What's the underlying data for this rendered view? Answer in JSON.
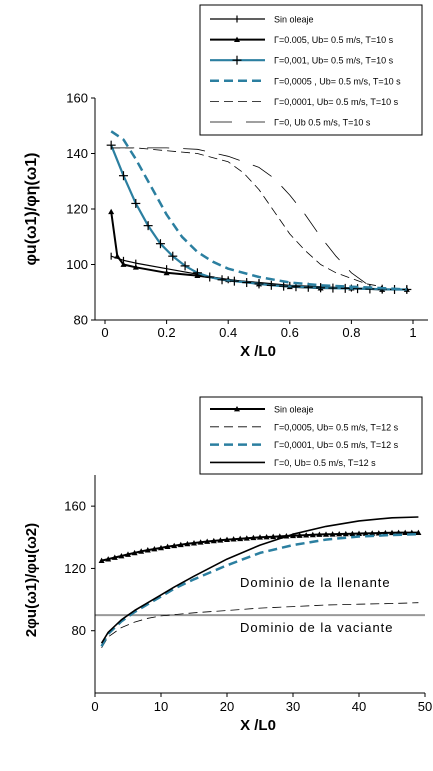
{
  "chart_data": [
    {
      "type": "line",
      "xlabel": "X /L0",
      "ylabel": "φu(ω1)/φη(ω1)",
      "xlim": [
        0,
        1
      ],
      "ylim": [
        80,
        160
      ],
      "x_ticks": [
        "0",
        "0.2",
        "0.4",
        "0.6",
        "0.8",
        "1"
      ],
      "y_ticks": [
        "80",
        "100",
        "120",
        "140",
        "160"
      ],
      "legend_position": "top-right",
      "series": [
        {
          "name": "Sin oleaje",
          "color": "#000000",
          "style": "solid",
          "width": 1.2,
          "marker": "tick",
          "x": [
            0.02,
            0.06,
            0.1,
            0.2,
            0.3,
            0.4,
            0.5,
            0.6,
            0.7,
            0.8,
            0.9,
            0.98
          ],
          "y": [
            103,
            101.5,
            100.5,
            98.5,
            96.5,
            94.5,
            93.5,
            92.5,
            92,
            91.5,
            91,
            91
          ]
        },
        {
          "name": "Γ=0.005, Ub= 0.5 m/s, T=10 s",
          "color": "#000000",
          "style": "solid",
          "width": 2,
          "marker": "triangle",
          "x": [
            0.02,
            0.04,
            0.06,
            0.1,
            0.2,
            0.3,
            0.4,
            0.5,
            0.6,
            0.7,
            0.8,
            0.9,
            0.98
          ],
          "y": [
            119,
            103,
            100,
            99,
            97,
            96,
            94.5,
            93,
            92,
            91.5,
            91.5,
            91,
            91
          ]
        },
        {
          "name": "Γ=0,001, Ub= 0.5 m/s, T=10 s",
          "color": "#2b7fa0",
          "style": "solid",
          "width": 2.2,
          "marker": "plus",
          "x": [
            0.02,
            0.06,
            0.1,
            0.14,
            0.18,
            0.22,
            0.26,
            0.3,
            0.34,
            0.38,
            0.42,
            0.46,
            0.5,
            0.54,
            0.58,
            0.62,
            0.66,
            0.7,
            0.74,
            0.78,
            0.82,
            0.86,
            0.9,
            0.94,
            0.98
          ],
          "y": [
            143,
            132,
            122,
            114,
            107.5,
            103,
            99.5,
            97,
            95.5,
            94.5,
            94,
            93.5,
            93,
            92.5,
            92.2,
            92,
            91.8,
            91.6,
            91.5,
            91.4,
            91.3,
            91.2,
            91.1,
            91,
            91
          ]
        },
        {
          "name": "Γ=0,0005 , Ub= 0.5 m/s, T=10 s",
          "color": "#2b7fa0",
          "style": "dashed",
          "width": 2.5,
          "marker": "none",
          "x": [
            0.02,
            0.06,
            0.1,
            0.15,
            0.2,
            0.25,
            0.3,
            0.35,
            0.4,
            0.5,
            0.6,
            0.7,
            0.8,
            0.9,
            0.98
          ],
          "y": [
            148,
            145,
            138,
            128,
            118,
            110,
            104.5,
            101,
            98.5,
            95.5,
            93.5,
            92.5,
            92,
            91.5,
            91
          ]
        },
        {
          "name": "Γ=0,0001, Ub= 0.5 m/s, T=10 s",
          "color": "#000000",
          "style": "dashed",
          "width": 0.8,
          "marker": "none",
          "x": [
            0.02,
            0.1,
            0.2,
            0.3,
            0.4,
            0.45,
            0.5,
            0.55,
            0.6,
            0.65,
            0.7,
            0.75,
            0.8,
            0.85,
            0.9
          ],
          "y": [
            142,
            142,
            141,
            140,
            137,
            133,
            127,
            119,
            111,
            105,
            100,
            97,
            95,
            93,
            92
          ]
        },
        {
          "name": "Γ=0, Ub 0.5 m/s, T=10 s",
          "color": "#000000",
          "style": "longdash",
          "width": 0.8,
          "marker": "none",
          "x": [
            0.02,
            0.1,
            0.2,
            0.3,
            0.4,
            0.5,
            0.55,
            0.6,
            0.65,
            0.7,
            0.75,
            0.8,
            0.85,
            0.88
          ],
          "y": [
            142,
            142,
            142,
            141.5,
            139,
            135,
            131,
            125,
            118,
            110,
            103,
            97,
            93,
            92
          ]
        }
      ]
    },
    {
      "type": "line",
      "xlabel": "X /L0",
      "ylabel": "2φu(ω1)/φu(ω2)",
      "xlim": [
        0,
        50
      ],
      "ylim": [
        40,
        180
      ],
      "x_ticks": [
        "0",
        "10",
        "20",
        "30",
        "40",
        "50"
      ],
      "y_ticks": [
        "80",
        "120",
        "160"
      ],
      "legend_position": "top-right",
      "reference_line": 90,
      "annotations": [
        "Dominio de la llenante",
        "Dominio de la vaciante"
      ],
      "series": [
        {
          "name": "Sin oleaje",
          "color": "#000000",
          "style": "solid",
          "width": 2,
          "marker": "triangle",
          "x": [
            1,
            2,
            3,
            4,
            5,
            6,
            7,
            8,
            9,
            10,
            11,
            12,
            13,
            14,
            15,
            16,
            17,
            18,
            19,
            20,
            21,
            22,
            23,
            24,
            25,
            26,
            27,
            28,
            29,
            30,
            31,
            32,
            33,
            34,
            35,
            36,
            37,
            38,
            39,
            40,
            41,
            42,
            43,
            44,
            45,
            46,
            47,
            48,
            49
          ],
          "y": [
            125,
            126,
            127,
            128,
            129,
            130,
            131,
            131.8,
            132.5,
            133.2,
            134,
            134.6,
            135.2,
            135.8,
            136.3,
            136.8,
            137.3,
            137.7,
            138.1,
            138.5,
            138.8,
            139.1,
            139.4,
            139.7,
            140,
            140.2,
            140.4,
            140.6,
            140.8,
            141,
            141.2,
            141.4,
            141.6,
            141.8,
            141.9,
            142,
            142.1,
            142.2,
            142.3,
            142.4,
            142.5,
            142.6,
            142.7,
            142.8,
            142.9,
            143,
            143,
            143,
            143
          ]
        },
        {
          "name": "Γ=0,0005, Ub= 0.5 m/s, T=12 s",
          "color": "#000000",
          "style": "dashed",
          "width": 0.8,
          "marker": "none",
          "x": [
            1,
            2,
            4,
            6,
            8,
            10,
            15,
            20,
            25,
            30,
            35,
            40,
            45,
            49
          ],
          "y": [
            69,
            76,
            82,
            85.5,
            88,
            89.5,
            91.5,
            93,
            94.5,
            95.5,
            96.5,
            97,
            97.5,
            98
          ]
        },
        {
          "name": "Γ=0,0001, Ub= 0.5 m/s, T=12 s",
          "color": "#2b7fa0",
          "style": "dashed",
          "width": 2.5,
          "marker": "none",
          "x": [
            1,
            2,
            4,
            6,
            8,
            10,
            12,
            15,
            20,
            25,
            30,
            35,
            40,
            45,
            49
          ],
          "y": [
            70,
            78,
            86,
            92,
            97,
            102,
            107,
            113,
            122,
            130,
            135,
            138.5,
            140.5,
            141.5,
            142
          ]
        },
        {
          "name": "Γ=0, Ub= 0.5 m/s, T=12 s",
          "color": "#000000",
          "style": "solid",
          "width": 1.6,
          "marker": "none",
          "x": [
            1,
            2,
            4,
            6,
            8,
            10,
            12,
            15,
            20,
            25,
            30,
            35,
            40,
            45,
            49
          ],
          "y": [
            72,
            79,
            87,
            93,
            98,
            103,
            108,
            115,
            126,
            135,
            142,
            147,
            150.5,
            152.5,
            153
          ]
        }
      ]
    }
  ]
}
